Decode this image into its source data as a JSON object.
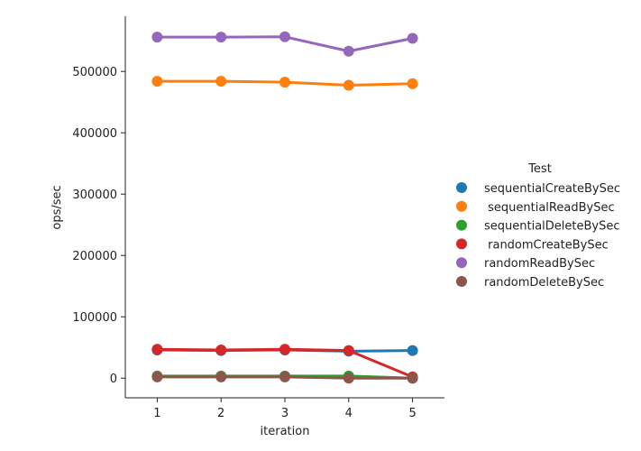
{
  "chart_data": {
    "type": "line",
    "title": "",
    "xlabel": "iteration",
    "ylabel": "ops/sec",
    "x": [
      1,
      2,
      3,
      4,
      5
    ],
    "xlim": [
      0.5,
      5.5
    ],
    "ylim": [
      -32000,
      590000
    ],
    "yticks": [
      0,
      100000,
      200000,
      300000,
      400000,
      500000
    ],
    "ytick_labels": [
      "0",
      "100000",
      "200000",
      "300000",
      "400000",
      "500000"
    ],
    "xtick_labels": [
      "1",
      "2",
      "3",
      "4",
      "5"
    ],
    "grid": false,
    "legend": {
      "title": "Test",
      "placement": "right"
    },
    "series": [
      {
        "name": "sequentialCreateBySec",
        "color": "#1f77b4",
        "values": [
          46000,
          45000,
          46000,
          44000,
          45000
        ]
      },
      {
        "name": " sequentialReadBySec",
        "color": "#ff7f0e",
        "values": [
          484000,
          484000,
          482500,
          477500,
          480000
        ]
      },
      {
        "name": "sequentialDeleteBySec",
        "color": "#2ca02c",
        "values": [
          3500,
          3500,
          3500,
          3500,
          0
        ]
      },
      {
        "name": " randomCreateBySec",
        "color": "#d62728",
        "values": [
          47000,
          46000,
          47000,
          45000,
          2000
        ]
      },
      {
        "name": "randomReadBySec",
        "color": "#9467bd",
        "values": [
          556000,
          556000,
          556500,
          533000,
          554000
        ]
      },
      {
        "name": "randomDeleteBySec",
        "color": "#8c564b",
        "values": [
          2000,
          2000,
          2000,
          0,
          0
        ]
      }
    ]
  }
}
